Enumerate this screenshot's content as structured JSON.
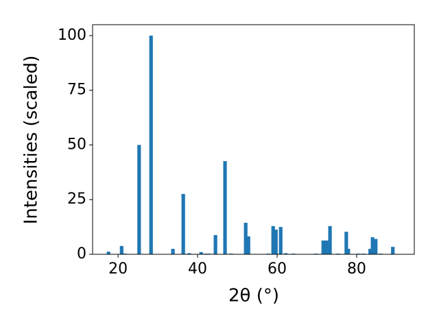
{
  "chart_data": {
    "type": "bar",
    "xlabel": "2θ (°)",
    "ylabel": "Intensities (scaled)",
    "x": [
      17.6,
      20.9,
      21.7,
      25.3,
      28.3,
      33.8,
      36.4,
      37.9,
      40.9,
      42.1,
      42.8,
      44.5,
      46.9,
      48.4,
      52.1,
      52.8,
      57.8,
      59.0,
      59.7,
      60.9,
      62.2,
      64.1,
      69.8,
      71.6,
      72.4,
      73.3,
      75.3,
      77.4,
      77.9,
      80.5,
      81.7,
      83.4,
      84.0,
      84.8,
      86.0,
      89.1
    ],
    "values": [
      1.2,
      3.8,
      0.3,
      50,
      100,
      2.5,
      27.6,
      0.5,
      1,
      0.3,
      0.3,
      8.8,
      42.6,
      0.3,
      14.4,
      8.2,
      0.3,
      12.9,
      11.3,
      12.5,
      0.5,
      0.3,
      0.3,
      6.3,
      6.3,
      12.9,
      0.3,
      10.3,
      2.5,
      0.3,
      0.3,
      2.5,
      7.8,
      7,
      0.3,
      3.4
    ],
    "color": "#1f77b4",
    "xlim": [
      13.6,
      94.5
    ],
    "ylim": [
      0,
      105
    ],
    "xticks": [
      20,
      40,
      60,
      80
    ],
    "yticks": [
      0,
      25,
      50,
      75,
      100
    ],
    "grid": false
  }
}
